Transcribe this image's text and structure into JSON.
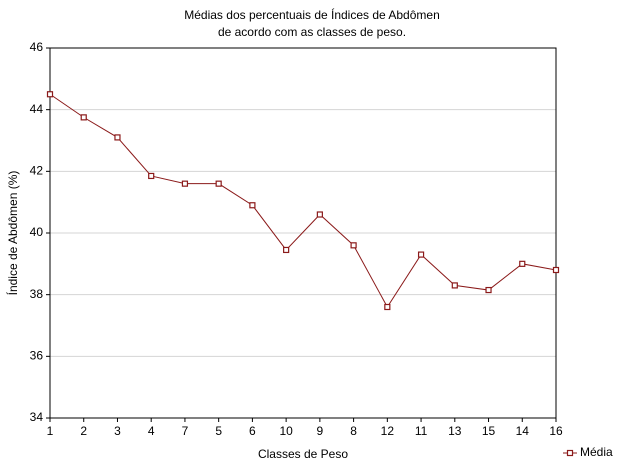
{
  "chart_data": {
    "type": "line",
    "title": [
      "Médias dos percentuais de Índices de Abdômen",
      "de acordo com as classes de peso."
    ],
    "x_label": "Classes de Peso",
    "y_label": "Índice de Abdômen (%)",
    "categories": [
      "1",
      "2",
      "3",
      "4",
      "7",
      "5",
      "6",
      "10",
      "9",
      "8",
      "12",
      "11",
      "13",
      "15",
      "14",
      "16"
    ],
    "series": [
      {
        "name": "Média",
        "color": "#8b1a1a",
        "values": [
          44.5,
          43.75,
          43.1,
          41.85,
          41.6,
          41.6,
          40.9,
          39.45,
          40.6,
          39.6,
          37.6,
          39.3,
          38.3,
          38.15,
          39.0,
          38.8
        ]
      }
    ],
    "ylim": [
      34,
      46
    ],
    "yticks": [
      34,
      36,
      38,
      40,
      42,
      44,
      46
    ],
    "grid": true,
    "legend": "bottom-right"
  }
}
